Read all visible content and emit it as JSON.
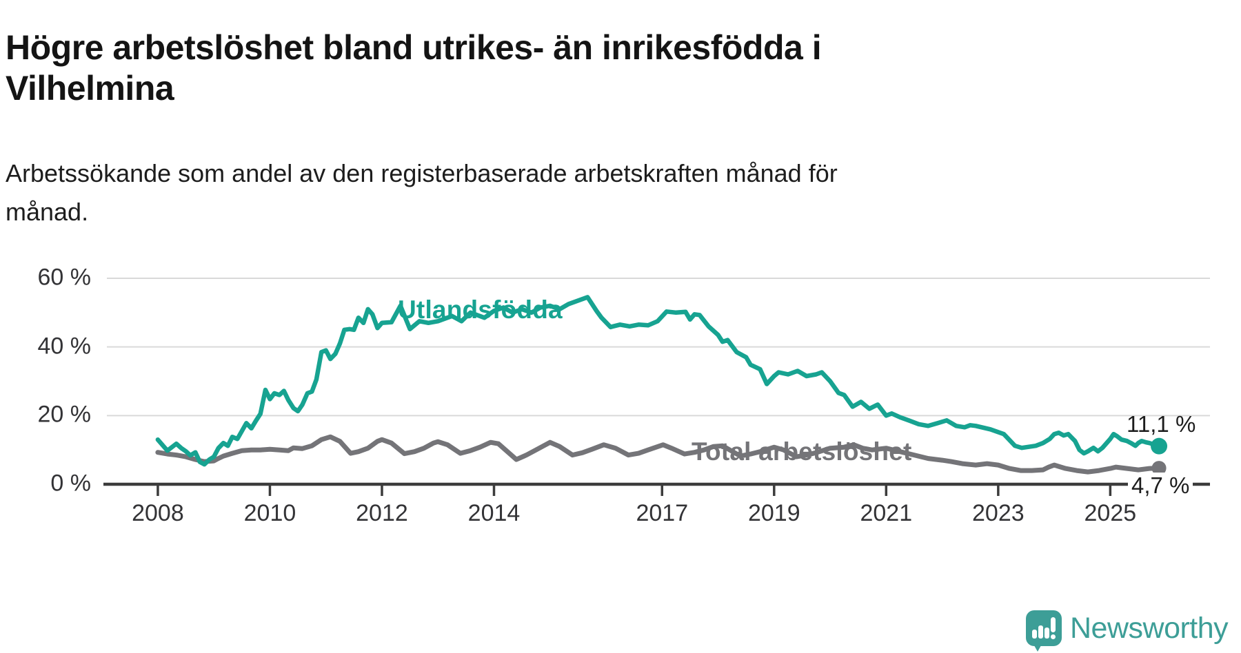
{
  "header": {
    "title": "Högre arbetslöshet bland utrikes- än inrikesfödda i\nVilhelmina",
    "subtitle": "Arbetssökande som andel av den registerbaserade arbetskraften månad för\nmånad."
  },
  "chart_data": {
    "type": "line",
    "title": "Högre arbetslöshet bland utrikes- än inrikesfödda i Vilhelmina",
    "subtitle": "Arbetssökande som andel av den registerbaserade arbetskraften månad för månad.",
    "grid": true,
    "legend": "inline-labels",
    "colors": {
      "utlandsfodda": "#17a391",
      "total": "#747478",
      "gridline": "#d9d9d9",
      "axis": "#3c3c3c",
      "tick_text": "#333336"
    },
    "x_axis": {
      "range": [
        2007.09,
        2026.78
      ],
      "ticks": [
        2008,
        2010,
        2012,
        2014,
        2017,
        2019,
        2021,
        2023,
        2025
      ],
      "tick_labels": [
        "2008",
        "2010",
        "2012",
        "2014",
        "2017",
        "2019",
        "2021",
        "2023",
        "2025"
      ]
    },
    "y_axis": {
      "unit": "%",
      "range": [
        0,
        60
      ],
      "ticks": [
        60,
        40,
        20,
        0
      ],
      "tick_labels": [
        "60 %",
        "40 %",
        "20 %",
        "0 %"
      ]
    },
    "series": [
      {
        "name": "Total arbetslöshet",
        "color": "#747478",
        "end_value": 4.7,
        "end_label": "4,7 %",
        "points": [
          [
            2008.0,
            9.3
          ],
          [
            2008.17,
            8.8
          ],
          [
            2008.33,
            8.5
          ],
          [
            2008.5,
            8.0
          ],
          [
            2008.67,
            7.2
          ],
          [
            2008.83,
            6.6
          ],
          [
            2009.0,
            6.8
          ],
          [
            2009.08,
            7.5
          ],
          [
            2009.17,
            8.2
          ],
          [
            2009.33,
            9.0
          ],
          [
            2009.5,
            9.8
          ],
          [
            2009.67,
            10.0
          ],
          [
            2009.83,
            10.0
          ],
          [
            2010.0,
            10.2
          ],
          [
            2010.17,
            10.0
          ],
          [
            2010.33,
            9.8
          ],
          [
            2010.42,
            10.6
          ],
          [
            2010.58,
            10.4
          ],
          [
            2010.75,
            11.2
          ],
          [
            2010.92,
            13.0
          ],
          [
            2011.08,
            13.8
          ],
          [
            2011.25,
            12.5
          ],
          [
            2011.44,
            9.0
          ],
          [
            2011.58,
            9.5
          ],
          [
            2011.75,
            10.5
          ],
          [
            2011.92,
            12.5
          ],
          [
            2012.0,
            13.0
          ],
          [
            2012.17,
            12.0
          ],
          [
            2012.4,
            8.9
          ],
          [
            2012.58,
            9.5
          ],
          [
            2012.75,
            10.5
          ],
          [
            2012.92,
            12.0
          ],
          [
            2013.0,
            12.4
          ],
          [
            2013.17,
            11.5
          ],
          [
            2013.4,
            9.0
          ],
          [
            2013.58,
            9.8
          ],
          [
            2013.75,
            10.8
          ],
          [
            2013.94,
            12.2
          ],
          [
            2014.08,
            11.8
          ],
          [
            2014.4,
            7.2
          ],
          [
            2014.58,
            8.5
          ],
          [
            2014.75,
            10.0
          ],
          [
            2015.0,
            12.2
          ],
          [
            2015.17,
            11.0
          ],
          [
            2015.4,
            8.5
          ],
          [
            2015.58,
            9.2
          ],
          [
            2015.75,
            10.2
          ],
          [
            2015.96,
            11.5
          ],
          [
            2016.17,
            10.5
          ],
          [
            2016.4,
            8.5
          ],
          [
            2016.58,
            9.0
          ],
          [
            2016.75,
            10.0
          ],
          [
            2017.02,
            11.5
          ],
          [
            2017.17,
            10.5
          ],
          [
            2017.4,
            8.8
          ],
          [
            2017.58,
            9.3
          ],
          [
            2017.75,
            10.0
          ],
          [
            2017.92,
            11.0
          ],
          [
            2018.08,
            11.2
          ],
          [
            2018.4,
            8.2
          ],
          [
            2018.58,
            8.8
          ],
          [
            2018.75,
            9.5
          ],
          [
            2019.0,
            10.8
          ],
          [
            2019.17,
            10.0
          ],
          [
            2019.4,
            8.0
          ],
          [
            2019.58,
            8.5
          ],
          [
            2019.75,
            9.2
          ],
          [
            2020.0,
            10.5
          ],
          [
            2020.25,
            10.8
          ],
          [
            2020.42,
            11.5
          ],
          [
            2020.58,
            10.5
          ],
          [
            2020.75,
            10.0
          ],
          [
            2021.0,
            10.5
          ],
          [
            2021.25,
            9.5
          ],
          [
            2021.5,
            8.5
          ],
          [
            2021.75,
            7.5
          ],
          [
            2022.0,
            7.0
          ],
          [
            2022.16,
            6.6
          ],
          [
            2022.36,
            6.0
          ],
          [
            2022.6,
            5.6
          ],
          [
            2022.8,
            6.0
          ],
          [
            2023.0,
            5.6
          ],
          [
            2023.2,
            4.6
          ],
          [
            2023.4,
            4.0
          ],
          [
            2023.6,
            4.0
          ],
          [
            2023.8,
            4.2
          ],
          [
            2023.9,
            5.0
          ],
          [
            2024.0,
            5.6
          ],
          [
            2024.2,
            4.6
          ],
          [
            2024.4,
            4.0
          ],
          [
            2024.6,
            3.6
          ],
          [
            2024.8,
            4.0
          ],
          [
            2025.0,
            4.6
          ],
          [
            2025.1,
            5.0
          ],
          [
            2025.3,
            4.6
          ],
          [
            2025.5,
            4.2
          ],
          [
            2025.7,
            4.6
          ],
          [
            2025.87,
            4.7
          ]
        ]
      },
      {
        "name": "Utlandsfödda",
        "color": "#17a391",
        "end_value": 11.1,
        "end_label": "11,1 %",
        "points": [
          [
            2008.0,
            13.0
          ],
          [
            2008.08,
            11.5
          ],
          [
            2008.17,
            9.8
          ],
          [
            2008.25,
            10.8
          ],
          [
            2008.33,
            11.8
          ],
          [
            2008.42,
            10.5
          ],
          [
            2008.5,
            9.6
          ],
          [
            2008.58,
            8.4
          ],
          [
            2008.67,
            9.3
          ],
          [
            2008.75,
            6.5
          ],
          [
            2008.83,
            5.8
          ],
          [
            2008.92,
            7.2
          ],
          [
            2009.0,
            8.0
          ],
          [
            2009.08,
            10.5
          ],
          [
            2009.17,
            12.0
          ],
          [
            2009.25,
            11.2
          ],
          [
            2009.33,
            13.8
          ],
          [
            2009.42,
            13.2
          ],
          [
            2009.5,
            15.5
          ],
          [
            2009.58,
            17.8
          ],
          [
            2009.67,
            16.3
          ],
          [
            2009.75,
            18.5
          ],
          [
            2009.83,
            20.5
          ],
          [
            2009.92,
            27.5
          ],
          [
            2010.0,
            24.8
          ],
          [
            2010.08,
            26.5
          ],
          [
            2010.17,
            26.0
          ],
          [
            2010.25,
            27.2
          ],
          [
            2010.33,
            24.5
          ],
          [
            2010.42,
            22.2
          ],
          [
            2010.5,
            21.3
          ],
          [
            2010.58,
            23.2
          ],
          [
            2010.67,
            26.5
          ],
          [
            2010.75,
            27.0
          ],
          [
            2010.83,
            30.5
          ],
          [
            2010.92,
            38.5
          ],
          [
            2011.0,
            39.0
          ],
          [
            2011.08,
            36.5
          ],
          [
            2011.17,
            38.0
          ],
          [
            2011.25,
            41.0
          ],
          [
            2011.33,
            45.0
          ],
          [
            2011.42,
            45.2
          ],
          [
            2011.5,
            45.0
          ],
          [
            2011.58,
            48.5
          ],
          [
            2011.67,
            47.0
          ],
          [
            2011.75,
            51.0
          ],
          [
            2011.83,
            49.5
          ],
          [
            2011.92,
            45.5
          ],
          [
            2012.0,
            47.0
          ],
          [
            2012.17,
            47.2
          ],
          [
            2012.33,
            52.0
          ],
          [
            2012.5,
            45.2
          ],
          [
            2012.67,
            47.5
          ],
          [
            2012.83,
            47.0
          ],
          [
            2013.0,
            47.5
          ],
          [
            2013.25,
            49.0
          ],
          [
            2013.42,
            47.5
          ],
          [
            2013.58,
            50.0
          ],
          [
            2013.83,
            48.5
          ],
          [
            2014.0,
            50.5
          ],
          [
            2014.17,
            51.5
          ],
          [
            2014.33,
            50.0
          ],
          [
            2014.5,
            51.0
          ],
          [
            2014.67,
            50.0
          ],
          [
            2014.83,
            51.5
          ],
          [
            2015.0,
            52.0
          ],
          [
            2015.17,
            51.0
          ],
          [
            2015.33,
            52.5
          ],
          [
            2015.5,
            53.5
          ],
          [
            2015.67,
            54.5
          ],
          [
            2015.83,
            50.5
          ],
          [
            2015.92,
            48.5
          ],
          [
            2016.08,
            45.8
          ],
          [
            2016.25,
            46.5
          ],
          [
            2016.42,
            46.0
          ],
          [
            2016.58,
            46.5
          ],
          [
            2016.75,
            46.3
          ],
          [
            2016.92,
            47.5
          ],
          [
            2017.08,
            50.3
          ],
          [
            2017.25,
            50.0
          ],
          [
            2017.42,
            50.2
          ],
          [
            2017.5,
            48.0
          ],
          [
            2017.58,
            49.5
          ],
          [
            2017.67,
            49.3
          ],
          [
            2017.83,
            46.0
          ],
          [
            2018.0,
            43.5
          ],
          [
            2018.08,
            41.5
          ],
          [
            2018.17,
            42.0
          ],
          [
            2018.33,
            38.5
          ],
          [
            2018.5,
            37.0
          ],
          [
            2018.58,
            34.8
          ],
          [
            2018.75,
            33.5
          ],
          [
            2018.87,
            29.2
          ],
          [
            2019.0,
            31.5
          ],
          [
            2019.08,
            32.6
          ],
          [
            2019.25,
            32.0
          ],
          [
            2019.42,
            33.0
          ],
          [
            2019.58,
            31.5
          ],
          [
            2019.75,
            32.0
          ],
          [
            2019.85,
            32.6
          ],
          [
            2020.0,
            30.0
          ],
          [
            2020.15,
            26.6
          ],
          [
            2020.25,
            26.0
          ],
          [
            2020.4,
            22.6
          ],
          [
            2020.55,
            24.0
          ],
          [
            2020.7,
            22.0
          ],
          [
            2020.85,
            23.2
          ],
          [
            2021.0,
            20.0
          ],
          [
            2021.1,
            20.6
          ],
          [
            2021.25,
            19.5
          ],
          [
            2021.42,
            18.5
          ],
          [
            2021.58,
            17.5
          ],
          [
            2021.75,
            17.0
          ],
          [
            2021.92,
            17.8
          ],
          [
            2022.08,
            18.6
          ],
          [
            2022.25,
            17.0
          ],
          [
            2022.4,
            16.6
          ],
          [
            2022.5,
            17.2
          ],
          [
            2022.6,
            17.0
          ],
          [
            2022.86,
            16.0
          ],
          [
            2023.0,
            15.2
          ],
          [
            2023.1,
            14.6
          ],
          [
            2023.3,
            11.2
          ],
          [
            2023.42,
            10.6
          ],
          [
            2023.67,
            11.2
          ],
          [
            2023.8,
            12.0
          ],
          [
            2023.92,
            13.2
          ],
          [
            2024.0,
            14.6
          ],
          [
            2024.08,
            15.0
          ],
          [
            2024.17,
            14.2
          ],
          [
            2024.25,
            14.6
          ],
          [
            2024.37,
            12.6
          ],
          [
            2024.45,
            10.0
          ],
          [
            2024.53,
            9.0
          ],
          [
            2024.6,
            9.6
          ],
          [
            2024.7,
            10.6
          ],
          [
            2024.78,
            9.6
          ],
          [
            2024.86,
            10.6
          ],
          [
            2025.0,
            13.2
          ],
          [
            2025.06,
            14.6
          ],
          [
            2025.12,
            14.0
          ],
          [
            2025.2,
            13.0
          ],
          [
            2025.3,
            12.6
          ],
          [
            2025.37,
            12.0
          ],
          [
            2025.45,
            11.2
          ],
          [
            2025.5,
            12.0
          ],
          [
            2025.56,
            12.6
          ],
          [
            2025.64,
            12.2
          ],
          [
            2025.7,
            12.0
          ],
          [
            2025.87,
            11.1
          ]
        ]
      }
    ]
  },
  "annotations": {
    "utlandsfodda_label": "Utlandsfödda",
    "total_label": "Total arbetslöshet",
    "end_label_utlandsfodda": "11,1 %",
    "end_label_total": "4,7 %"
  },
  "footer": {
    "brand": "Newsworthy",
    "brand_color": "#3d9e97",
    "icon": "newsworthy-speech-bubble-chart-icon"
  }
}
